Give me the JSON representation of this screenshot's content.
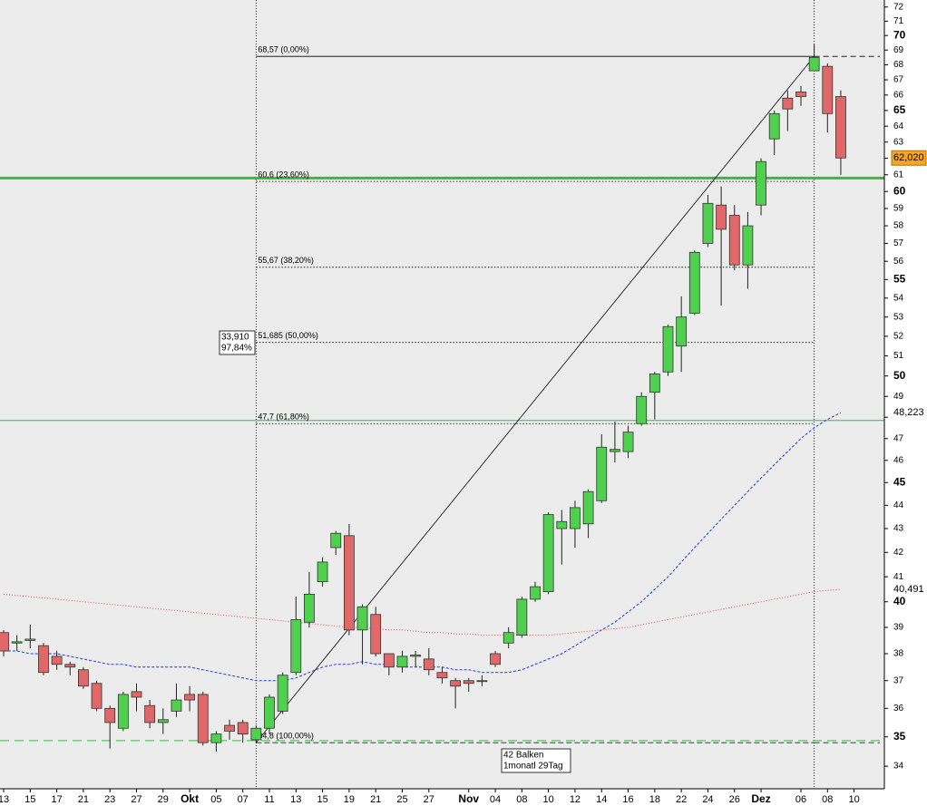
{
  "chart_data": {
    "type": "candlestick",
    "log_scale": true,
    "ylim": [
      33.25,
      72.5
    ],
    "yticks": [
      34,
      35,
      36,
      37,
      38,
      39,
      40,
      41,
      42,
      43,
      44,
      45,
      46,
      47,
      48,
      49,
      50,
      51,
      52,
      53,
      54,
      55,
      56,
      57,
      58,
      59,
      60,
      61,
      62,
      63,
      64,
      65,
      66,
      67,
      68,
      69,
      70,
      71,
      72
    ],
    "categories": [
      "13",
      null,
      "15",
      null,
      "17",
      null,
      "21",
      null,
      "23",
      null,
      "27",
      null,
      "29",
      null,
      "Okt",
      null,
      "05",
      null,
      "07",
      null,
      "11",
      null,
      "13",
      null,
      "15",
      null,
      "19",
      null,
      "21",
      null,
      "25",
      null,
      "27",
      null,
      null,
      "Nov",
      null,
      "04",
      null,
      "08",
      null,
      "10",
      null,
      "12",
      null,
      "14",
      null,
      "16",
      null,
      "18",
      null,
      "22",
      null,
      "24",
      null,
      "26",
      null,
      "Dez",
      null,
      null,
      "06",
      null,
      "08",
      null,
      "10"
    ],
    "up_color": "#4fd04f",
    "down_color": "#e06868",
    "open": [
      38.8,
      38.4,
      38.5,
      38.3,
      37.9,
      37.6,
      37.4,
      36.9,
      36.0,
      35.3,
      36.6,
      36.1,
      35.5,
      35.9,
      36.5,
      36.5,
      34.8,
      35.4,
      35.5,
      34.9,
      35.3,
      35.9,
      37.3,
      39.2,
      40.8,
      42.2,
      42.7,
      38.9,
      39.5,
      38.0,
      37.5,
      37.9,
      37.8,
      37.3,
      37.0,
      37.0,
      37.0,
      38.0,
      38.4,
      38.7,
      40.1,
      40.4,
      43.0,
      43.0,
      43.2,
      44.2,
      46.4,
      46.4,
      47.7,
      49.2,
      50.2,
      51.5,
      53.2,
      57.0,
      59.2,
      58.6,
      55.8,
      59.2,
      63.2,
      65.8,
      66.2,
      67.6,
      67.9,
      65.9,
      null
    ],
    "high": [
      38.9,
      38.7,
      39.1,
      38.4,
      38.1,
      37.7,
      37.5,
      37.0,
      36.1,
      36.6,
      36.9,
      36.3,
      36.0,
      36.9,
      36.8,
      36.6,
      35.2,
      35.6,
      35.6,
      35.4,
      36.5,
      37.3,
      40.2,
      41.2,
      41.8,
      42.9,
      43.2,
      39.9,
      39.8,
      38.0,
      38.1,
      38.1,
      38.2,
      37.5,
      37.1,
      37.1,
      37.2,
      38.1,
      39.0,
      40.2,
      40.8,
      43.7,
      43.8,
      44.2,
      44.7,
      47.2,
      47.8,
      47.6,
      49.2,
      50.2,
      52.6,
      54.1,
      56.6,
      59.8,
      60.3,
      59.2,
      58.8,
      62.0,
      65.0,
      66.3,
      66.6,
      69.4,
      68.1,
      66.3,
      null
    ],
    "low": [
      37.9,
      38.1,
      38.2,
      37.2,
      37.4,
      37.2,
      36.7,
      35.9,
      34.6,
      35.2,
      35.9,
      35.3,
      35.1,
      35.7,
      35.9,
      34.7,
      34.5,
      34.9,
      34.8,
      34.8,
      35.1,
      35.8,
      37.2,
      39.0,
      40.6,
      41.9,
      38.7,
      37.6,
      37.9,
      37.2,
      37.3,
      37.5,
      37.2,
      36.9,
      36.0,
      36.6,
      36.8,
      37.5,
      38.2,
      38.6,
      40.0,
      40.3,
      41.5,
      42.2,
      42.6,
      44.1,
      45.9,
      46.1,
      47.6,
      47.9,
      50.0,
      50.2,
      53.1,
      56.8,
      53.6,
      55.5,
      54.5,
      58.6,
      62.2,
      63.7,
      65.3,
      67.6,
      63.6,
      61.0,
      null
    ],
    "close": [
      38.1,
      38.45,
      38.55,
      37.3,
      37.6,
      37.5,
      36.8,
      36.0,
      35.5,
      36.5,
      36.4,
      35.5,
      35.6,
      36.3,
      36.3,
      34.8,
      35.1,
      35.2,
      35.1,
      35.3,
      36.4,
      37.2,
      39.3,
      40.3,
      41.6,
      42.8,
      38.9,
      39.8,
      38.0,
      37.5,
      37.9,
      37.95,
      37.4,
      37.1,
      36.8,
      36.9,
      37.0,
      37.6,
      38.8,
      40.1,
      40.6,
      43.6,
      43.3,
      43.9,
      44.6,
      46.6,
      46.5,
      47.3,
      49.0,
      50.1,
      52.5,
      53.0,
      56.5,
      59.3,
      57.8,
      55.8,
      58.0,
      61.8,
      64.8,
      65.1,
      65.9,
      68.5,
      64.8,
      62.02,
      null
    ],
    "moving_averages": [
      {
        "color": "#1a3fe0",
        "style": "dashed",
        "values": [
          38.1,
          38.1,
          38.0,
          38.0,
          38.0,
          37.9,
          37.8,
          37.7,
          37.6,
          37.6,
          37.5,
          37.5,
          37.5,
          37.5,
          37.5,
          37.4,
          37.3,
          37.2,
          37.1,
          37.0,
          37.0,
          37.0,
          37.1,
          37.3,
          37.5,
          37.6,
          37.6,
          37.7,
          37.6,
          37.6,
          37.5,
          37.5,
          37.5,
          37.5,
          37.4,
          37.4,
          37.3,
          37.3,
          37.3,
          37.4,
          37.6,
          37.8,
          38.0,
          38.3,
          38.6,
          38.9,
          39.2,
          39.6,
          40.0,
          40.5,
          41.0,
          41.6,
          42.2,
          42.8,
          43.4,
          44.0,
          44.6,
          45.2,
          45.8,
          46.4,
          47.0,
          47.5,
          47.9,
          48.223,
          null
        ]
      },
      {
        "color": "#e05050",
        "style": "dotted",
        "values": [
          40.3,
          40.25,
          40.2,
          40.15,
          40.1,
          40.05,
          40.0,
          39.95,
          39.9,
          39.85,
          39.8,
          39.75,
          39.7,
          39.65,
          39.6,
          39.55,
          39.5,
          39.45,
          39.4,
          39.35,
          39.3,
          39.25,
          39.2,
          39.15,
          39.1,
          39.05,
          39.0,
          39.0,
          38.95,
          38.9,
          38.9,
          38.85,
          38.8,
          38.8,
          38.75,
          38.75,
          38.7,
          38.7,
          38.7,
          38.7,
          38.7,
          38.7,
          38.75,
          38.8,
          38.85,
          38.9,
          38.95,
          39.0,
          39.1,
          39.2,
          39.3,
          39.4,
          39.5,
          39.6,
          39.7,
          39.8,
          39.9,
          40.0,
          40.1,
          40.2,
          40.3,
          40.4,
          40.45,
          40.491,
          null
        ]
      }
    ],
    "horizontal_lines": [
      {
        "value": 60.8,
        "color": "#3cb83c",
        "style": "thick"
      },
      {
        "value": 47.85,
        "color": "#3cb83c",
        "style": "thin"
      },
      {
        "value": 34.87,
        "color": "#3cb83c",
        "style": "dashed"
      }
    ],
    "fibonacci": {
      "start_index": 19,
      "end_index": 61,
      "levels": [
        {
          "value": 68.57,
          "label": "68,57 (0,00%)"
        },
        {
          "value": 60.6,
          "label": "60,6 (23,60%)"
        },
        {
          "value": 55.67,
          "label": "55,67 (38,20%)"
        },
        {
          "value": 51.685,
          "label": "51,685 (50,00%)"
        },
        {
          "value": 47.7,
          "label": "47,7 (61,80%)"
        },
        {
          "value": 34.8,
          "label": "34,8 (100,00%)"
        }
      ]
    },
    "price_labels": [
      {
        "value": 62.02,
        "label": "62,020",
        "color": "#f5a623",
        "filled": true
      },
      {
        "value": 48.223,
        "label": "48,223",
        "color": "#2a4be0",
        "filled": false
      },
      {
        "value": 40.491,
        "label": "40,491",
        "color": "#e05050",
        "filled": false
      }
    ],
    "annotations": [
      {
        "lines": [
          "33,910",
          "97,84%"
        ]
      },
      {
        "lines": [
          "42 Balken",
          "1monatl 29Tag"
        ]
      }
    ]
  }
}
